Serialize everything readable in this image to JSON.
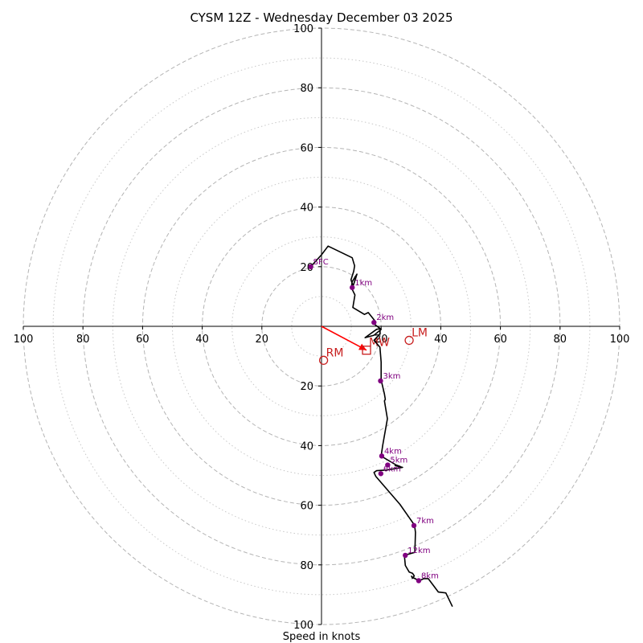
{
  "chart_data": {
    "type": "hodograph",
    "title": "CYSM 12Z - Wednesday December 03 2025",
    "xlabel": "Speed in knots",
    "range": [
      -100,
      100
    ],
    "ring_major": [
      20,
      40,
      60,
      80,
      100
    ],
    "ring_minor": [
      10,
      30,
      50,
      70,
      90
    ],
    "x_ticks": [
      {
        "value": -100,
        "label": "100"
      },
      {
        "value": -80,
        "label": "80"
      },
      {
        "value": -60,
        "label": "60"
      },
      {
        "value": -40,
        "label": "40"
      },
      {
        "value": -20,
        "label": "20"
      },
      {
        "value": 20,
        "label": "20"
      },
      {
        "value": 40,
        "label": "40"
      },
      {
        "value": 60,
        "label": "60"
      },
      {
        "value": 80,
        "label": "80"
      },
      {
        "value": 100,
        "label": "100"
      }
    ],
    "y_ticks": [
      {
        "value": 100,
        "label": "100"
      },
      {
        "value": 80,
        "label": "80"
      },
      {
        "value": 60,
        "label": "60"
      },
      {
        "value": 40,
        "label": "40"
      },
      {
        "value": 20,
        "label": "20"
      },
      {
        "value": -20,
        "label": "20"
      },
      {
        "value": -40,
        "label": "40"
      },
      {
        "value": -60,
        "label": "60"
      },
      {
        "value": -80,
        "label": "80"
      },
      {
        "value": -100,
        "label": "100"
      }
    ],
    "trace_color": "#000000",
    "trace": [
      [
        -3.6,
        20
      ],
      [
        0,
        24
      ],
      [
        2.2,
        26.9
      ],
      [
        10.3,
        23
      ],
      [
        11.1,
        20.3
      ],
      [
        10.8,
        18.5
      ],
      [
        9.9,
        15.6
      ],
      [
        10.6,
        13.5
      ],
      [
        11.9,
        17.5
      ],
      [
        10.3,
        15
      ],
      [
        10,
        13
      ],
      [
        11.2,
        10.5
      ],
      [
        10.5,
        6.3
      ],
      [
        14.4,
        4
      ],
      [
        15.7,
        4.6
      ],
      [
        17.8,
        2
      ],
      [
        17.6,
        0.8
      ],
      [
        20,
        -1
      ],
      [
        17.6,
        -3
      ],
      [
        14.6,
        -3.8
      ],
      [
        18.5,
        -1
      ],
      [
        19.7,
        -0.8
      ],
      [
        19.6,
        -2.5
      ],
      [
        17.6,
        -4.7
      ],
      [
        19.6,
        -7
      ],
      [
        20,
        -12
      ],
      [
        20,
        -18
      ],
      [
        21.1,
        -22.7
      ],
      [
        21.4,
        -24.5
      ],
      [
        21.1,
        -25
      ],
      [
        22.1,
        -31
      ],
      [
        20.5,
        -40
      ],
      [
        20,
        -43.5
      ],
      [
        25,
        -46.5
      ],
      [
        26.4,
        -47
      ],
      [
        24.7,
        -46.7
      ],
      [
        27.2,
        -47.3
      ],
      [
        21.8,
        -48.2
      ],
      [
        18.5,
        -48.4
      ],
      [
        17.6,
        -49
      ],
      [
        18.2,
        -50.3
      ],
      [
        26.3,
        -59.7
      ],
      [
        31.2,
        -66.7
      ],
      [
        31.5,
        -69.1
      ],
      [
        31.4,
        -72.8
      ],
      [
        31.3,
        -75.8
      ],
      [
        27.8,
        -76.8
      ],
      [
        28.1,
        -80.2
      ],
      [
        29.4,
        -82.4
      ],
      [
        30.5,
        -82.8
      ],
      [
        31.1,
        -83.7
      ],
      [
        30.5,
        -84.5
      ],
      [
        30.2,
        -83.8
      ],
      [
        30.5,
        -84.2
      ],
      [
        32.8,
        -85.3
      ],
      [
        34.3,
        -84.6
      ],
      [
        35.8,
        -84.6
      ],
      [
        39.2,
        -89.1
      ],
      [
        41.7,
        -89.4
      ],
      [
        43.9,
        -94
      ]
    ],
    "height_markers": [
      {
        "label": "SFC",
        "x": -3.6,
        "y": 20
      },
      {
        "label": "1km",
        "x": 10.3,
        "y": 13
      },
      {
        "label": "2km",
        "x": 17.6,
        "y": 1.3
      },
      {
        "label": "3km",
        "x": 19.8,
        "y": -18.3
      },
      {
        "label": "4km",
        "x": 20.2,
        "y": -43.5
      },
      {
        "label": "5km",
        "x": 22.2,
        "y": -46.5
      },
      {
        "label": "6km",
        "x": 19.9,
        "y": -49.4
      },
      {
        "label": "7km",
        "x": 31,
        "y": -66.8
      },
      {
        "label": "12km",
        "x": 28.1,
        "y": -76.8
      },
      {
        "label": "8km",
        "x": 32.6,
        "y": -85.3
      }
    ],
    "motion_markers": [
      {
        "label": "LM",
        "type": "circle",
        "x": 29.4,
        "y": -4.7
      },
      {
        "label": "RM",
        "type": "circle",
        "x": 0.7,
        "y": -11.4
      },
      {
        "label": "MW",
        "type": "square",
        "x": 15.1,
        "y": -8
      }
    ],
    "motion_vector": {
      "color": "#ff0000",
      "from": [
        0,
        0
      ],
      "to": [
        15.1,
        -8
      ]
    },
    "marker_color": "#800080",
    "motion_color": "#c81e1e"
  }
}
